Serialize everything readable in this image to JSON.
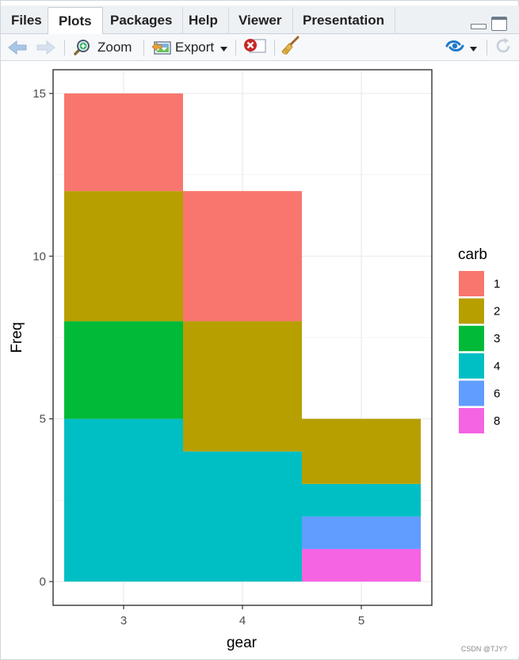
{
  "tabs": [
    {
      "label": "Files",
      "active": false
    },
    {
      "label": "Plots",
      "active": true
    },
    {
      "label": "Packages",
      "active": false
    },
    {
      "label": "Help",
      "active": false
    },
    {
      "label": "Viewer",
      "active": false
    },
    {
      "label": "Presentation",
      "active": false
    }
  ],
  "toolbar": {
    "zoom_label": "Zoom",
    "export_label": "Export",
    "icons": [
      "back-arrow-icon",
      "forward-arrow-icon",
      "zoom-icon",
      "export-icon",
      "remove-plot-icon",
      "clear-all-broom-icon",
      "publish-icon",
      "refresh-icon"
    ]
  },
  "chart_data": {
    "type": "bar",
    "stacked": true,
    "xlabel": "gear",
    "ylabel": "Freq",
    "categories": [
      "3",
      "4",
      "5"
    ],
    "ylim": [
      0,
      15
    ],
    "yticks": [
      0,
      5,
      10,
      15
    ],
    "legend_title": "carb",
    "legend_position": "right",
    "series": [
      {
        "name": "8",
        "color": "#F564E3",
        "values": [
          0,
          0,
          1
        ]
      },
      {
        "name": "6",
        "color": "#619CFF",
        "values": [
          0,
          0,
          1
        ]
      },
      {
        "name": "4",
        "color": "#00BFC4",
        "values": [
          5,
          4,
          1
        ]
      },
      {
        "name": "3",
        "color": "#00BA38",
        "values": [
          3,
          0,
          0
        ]
      },
      {
        "name": "2",
        "color": "#B79F00",
        "values": [
          4,
          4,
          2
        ]
      },
      {
        "name": "1",
        "color": "#F8766D",
        "values": [
          3,
          4,
          0
        ]
      }
    ],
    "legend_order": [
      "1",
      "2",
      "3",
      "4",
      "6",
      "8"
    ]
  },
  "watermark": "CSDN @TJY?"
}
